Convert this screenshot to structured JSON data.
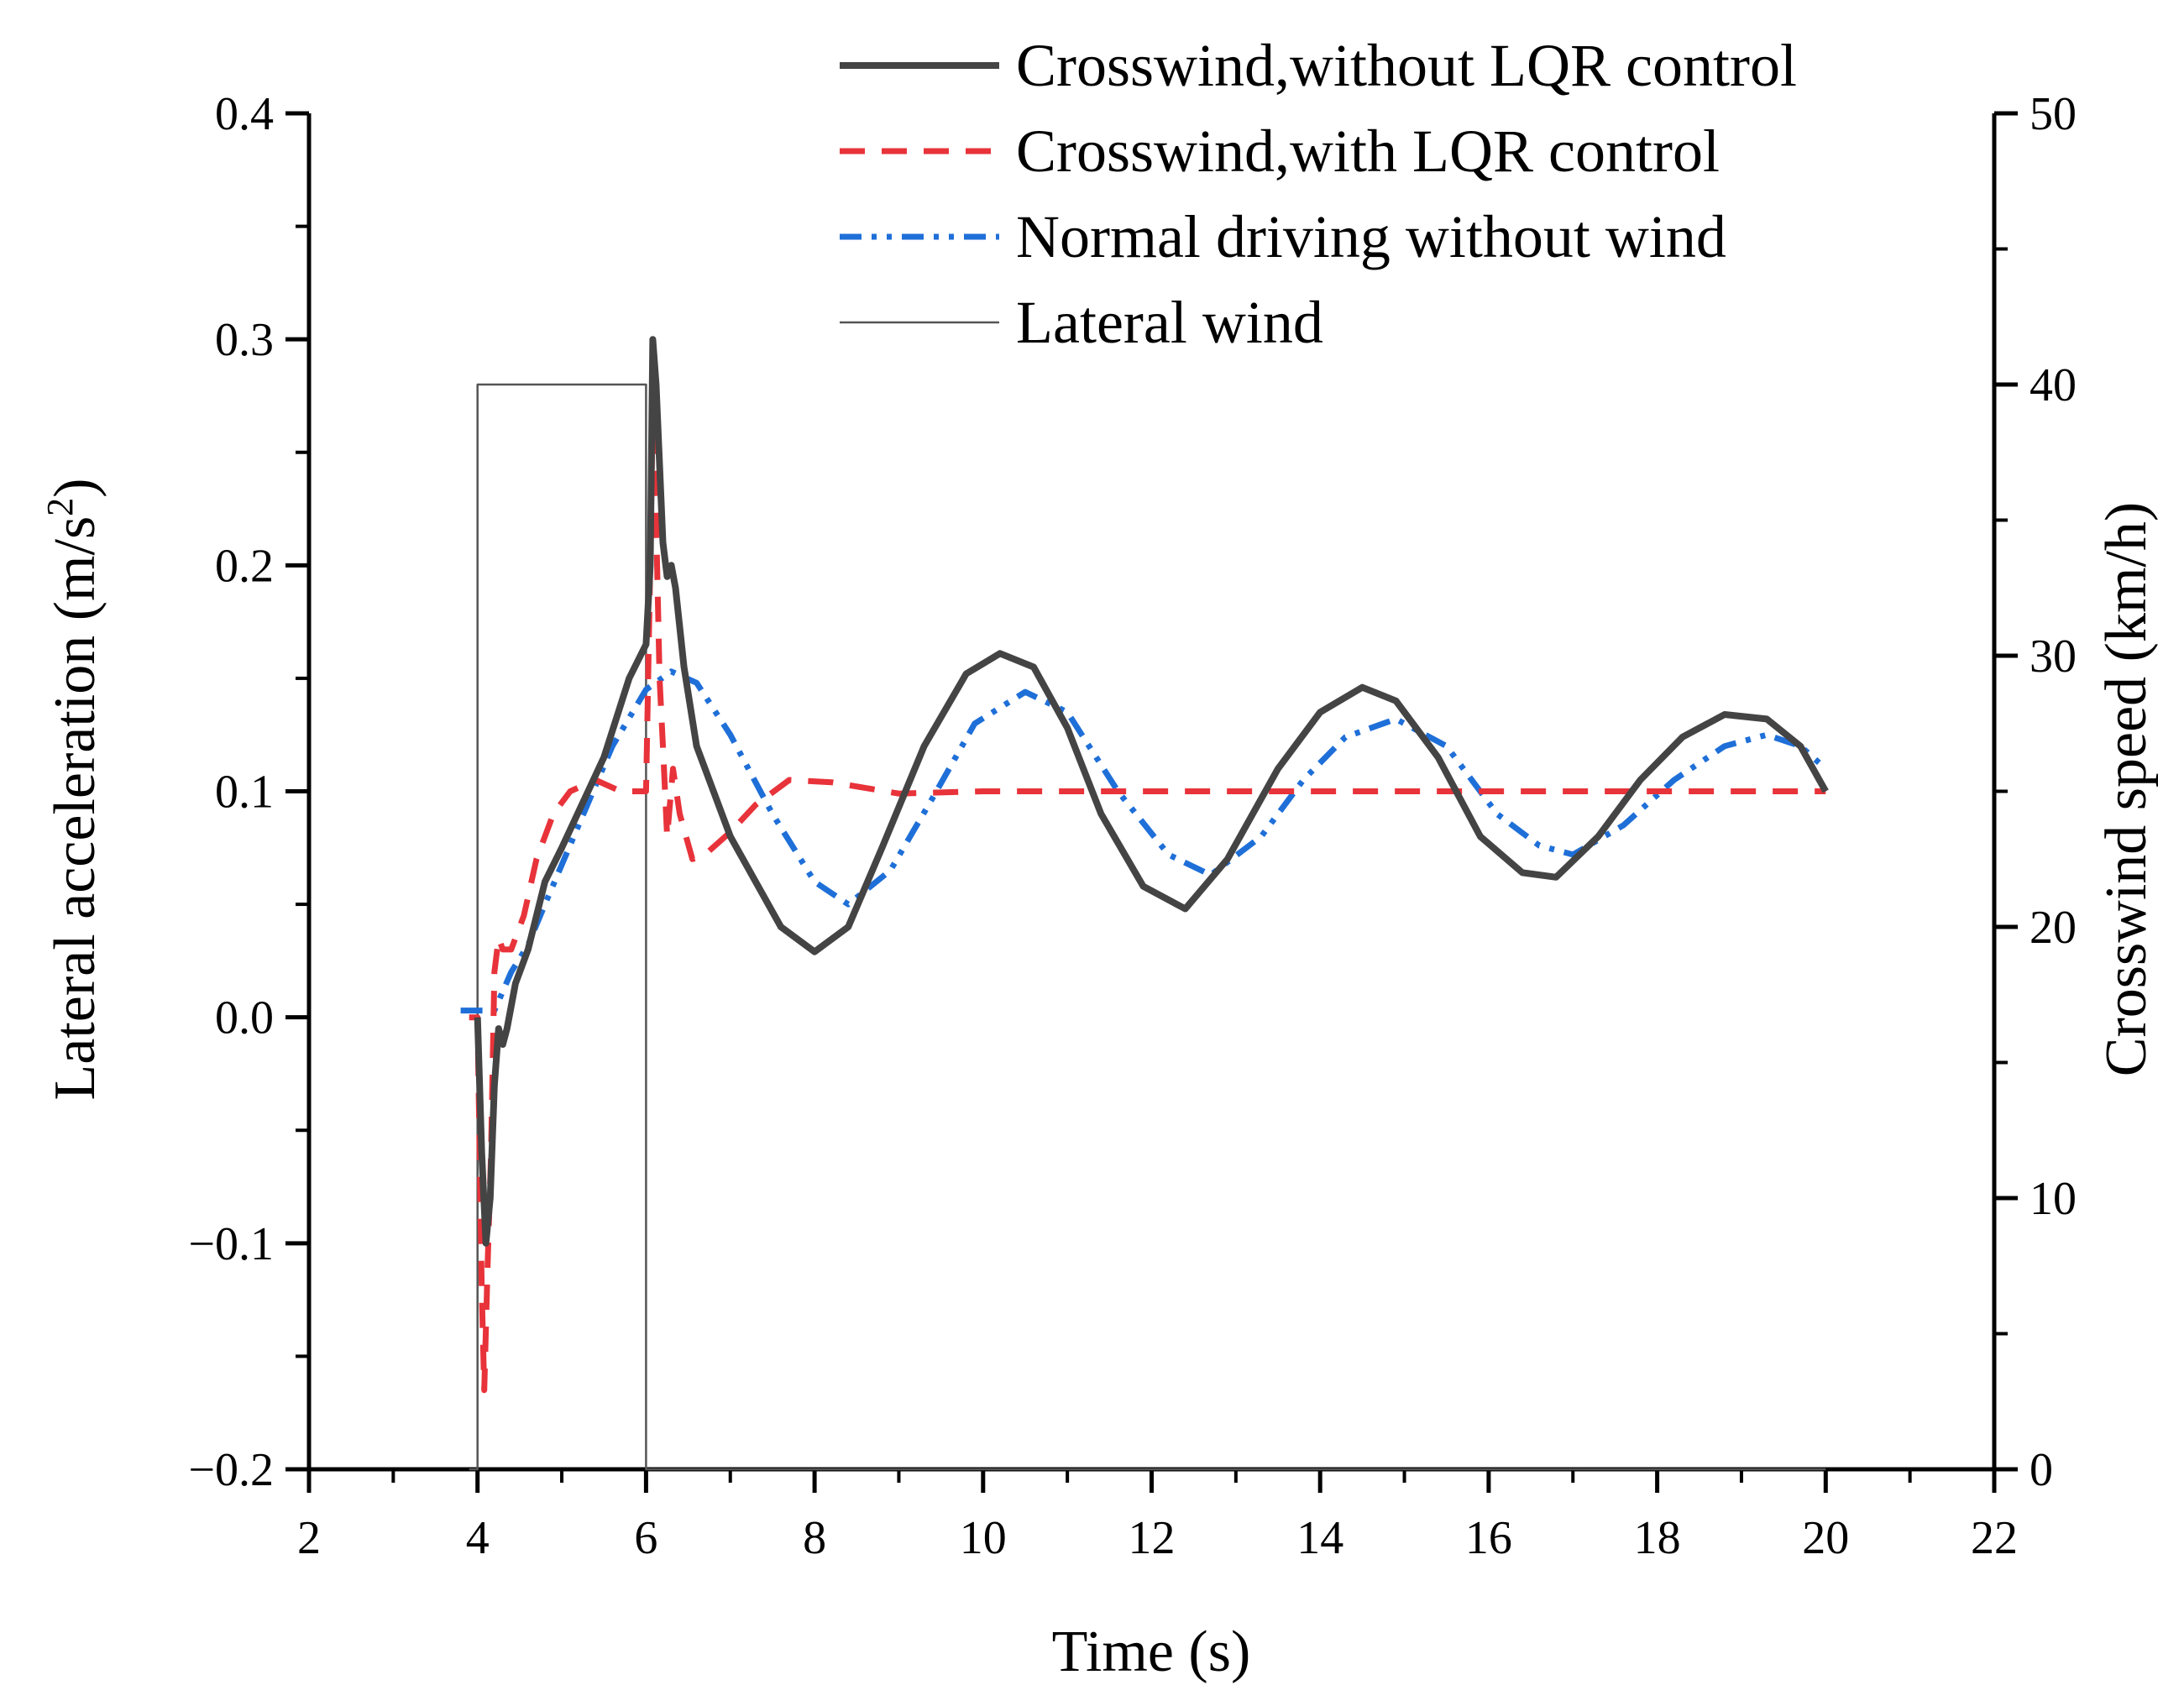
{
  "chart_data": {
    "type": "line",
    "xlabel": "Time (s)",
    "ylabel": "Lateral acceleration (m/s²)",
    "ylabel_main": "Lateral acceleration (m/s",
    "ylabel_sup": "2",
    "ylabel_tail": ")",
    "y2label": "Crosswind speed (km/h)",
    "xlim": [
      2,
      22
    ],
    "ylim": [
      -0.2,
      0.4
    ],
    "y2lim": [
      0,
      50
    ],
    "x_ticks": [
      "2",
      "4",
      "6",
      "8",
      "10",
      "12",
      "14",
      "16",
      "18",
      "20",
      "22"
    ],
    "y_ticks": [
      "−0.2",
      "−0.1",
      "0.0",
      "0.1",
      "0.2",
      "0.3",
      "0.4"
    ],
    "y2_ticks": [
      "0",
      "10",
      "20",
      "30",
      "40",
      "50"
    ],
    "legend_position": "top-right",
    "series": [
      {
        "name": "Crosswind,without LQR control",
        "axis": "left",
        "color": "#444444",
        "style": "solid",
        "points": [
          [
            4.0,
            0.0
          ],
          [
            4.05,
            -0.06
          ],
          [
            4.1,
            -0.1
          ],
          [
            4.15,
            -0.08
          ],
          [
            4.2,
            -0.03
          ],
          [
            4.25,
            -0.005
          ],
          [
            4.3,
            -0.012
          ],
          [
            4.35,
            -0.005
          ],
          [
            4.45,
            0.015
          ],
          [
            4.6,
            0.03
          ],
          [
            4.8,
            0.06
          ],
          [
            5.0,
            0.075
          ],
          [
            5.5,
            0.115
          ],
          [
            5.8,
            0.15
          ],
          [
            6.0,
            0.165
          ],
          [
            6.05,
            0.2
          ],
          [
            6.08,
            0.3
          ],
          [
            6.12,
            0.28
          ],
          [
            6.2,
            0.21
          ],
          [
            6.25,
            0.195
          ],
          [
            6.3,
            0.2
          ],
          [
            6.35,
            0.19
          ],
          [
            6.45,
            0.155
          ],
          [
            6.6,
            0.12
          ],
          [
            6.8,
            0.1
          ],
          [
            7.0,
            0.08
          ],
          [
            7.3,
            0.06
          ],
          [
            7.6,
            0.04
          ],
          [
            8.0,
            0.029
          ],
          [
            8.4,
            0.04
          ],
          [
            8.8,
            0.075
          ],
          [
            9.3,
            0.12
          ],
          [
            9.8,
            0.152
          ],
          [
            10.2,
            0.161
          ],
          [
            10.6,
            0.155
          ],
          [
            11.0,
            0.128
          ],
          [
            11.4,
            0.09
          ],
          [
            11.9,
            0.058
          ],
          [
            12.4,
            0.048
          ],
          [
            12.9,
            0.07
          ],
          [
            13.5,
            0.11
          ],
          [
            14.0,
            0.135
          ],
          [
            14.5,
            0.146
          ],
          [
            14.9,
            0.14
          ],
          [
            15.4,
            0.115
          ],
          [
            15.9,
            0.08
          ],
          [
            16.4,
            0.064
          ],
          [
            16.8,
            0.062
          ],
          [
            17.3,
            0.08
          ],
          [
            17.8,
            0.105
          ],
          [
            18.3,
            0.124
          ],
          [
            18.8,
            0.134
          ],
          [
            19.3,
            0.132
          ],
          [
            19.7,
            0.12
          ],
          [
            20.0,
            0.1
          ]
        ]
      },
      {
        "name": "Crosswind,with LQR control",
        "axis": "left",
        "color": "#e8333a",
        "style": "dash",
        "points": [
          [
            3.9,
            0.0
          ],
          [
            4.0,
            0.0
          ],
          [
            4.05,
            -0.12
          ],
          [
            4.08,
            -0.165
          ],
          [
            4.12,
            -0.11
          ],
          [
            4.16,
            -0.06
          ],
          [
            4.2,
            0.02
          ],
          [
            4.25,
            0.035
          ],
          [
            4.3,
            0.03
          ],
          [
            4.4,
            0.03
          ],
          [
            4.55,
            0.045
          ],
          [
            4.7,
            0.07
          ],
          [
            4.9,
            0.09
          ],
          [
            5.1,
            0.1
          ],
          [
            5.4,
            0.105
          ],
          [
            5.7,
            0.1
          ],
          [
            5.9,
            0.1
          ],
          [
            6.0,
            0.1
          ],
          [
            6.05,
            0.2
          ],
          [
            6.08,
            0.27
          ],
          [
            6.12,
            0.22
          ],
          [
            6.16,
            0.15
          ],
          [
            6.2,
            0.12
          ],
          [
            6.25,
            0.08
          ],
          [
            6.32,
            0.11
          ],
          [
            6.4,
            0.09
          ],
          [
            6.55,
            0.07
          ],
          [
            6.7,
            0.072
          ],
          [
            7.0,
            0.082
          ],
          [
            7.3,
            0.094
          ],
          [
            7.7,
            0.105
          ],
          [
            8.2,
            0.104
          ],
          [
            9.0,
            0.099
          ],
          [
            10.0,
            0.1
          ],
          [
            20.0,
            0.1
          ]
        ]
      },
      {
        "name": "Normal driving without wind",
        "axis": "left",
        "color": "#1f6fd8",
        "style": "dash-dot-dot",
        "points": [
          [
            3.8,
            0.003
          ],
          [
            4.0,
            0.003
          ],
          [
            4.2,
            0.003
          ],
          [
            4.4,
            0.02
          ],
          [
            4.6,
            0.032
          ],
          [
            4.8,
            0.05
          ],
          [
            5.2,
            0.085
          ],
          [
            5.6,
            0.12
          ],
          [
            6.0,
            0.145
          ],
          [
            6.3,
            0.153
          ],
          [
            6.6,
            0.148
          ],
          [
            7.0,
            0.125
          ],
          [
            7.5,
            0.09
          ],
          [
            8.0,
            0.06
          ],
          [
            8.4,
            0.05
          ],
          [
            8.9,
            0.065
          ],
          [
            9.4,
            0.097
          ],
          [
            9.9,
            0.13
          ],
          [
            10.5,
            0.144
          ],
          [
            11.0,
            0.135
          ],
          [
            11.6,
            0.1
          ],
          [
            12.2,
            0.072
          ],
          [
            12.7,
            0.063
          ],
          [
            13.3,
            0.08
          ],
          [
            13.8,
            0.105
          ],
          [
            14.3,
            0.124
          ],
          [
            14.9,
            0.132
          ],
          [
            15.5,
            0.12
          ],
          [
            16.1,
            0.09
          ],
          [
            16.6,
            0.076
          ],
          [
            17.0,
            0.072
          ],
          [
            17.6,
            0.085
          ],
          [
            18.2,
            0.105
          ],
          [
            18.8,
            0.12
          ],
          [
            19.3,
            0.125
          ],
          [
            19.7,
            0.12
          ],
          [
            20.0,
            0.11
          ]
        ]
      },
      {
        "name": "Lateral wind",
        "axis": "right",
        "color": "#555555",
        "style": "thin",
        "points": [
          [
            3.9,
            0
          ],
          [
            4.0,
            0
          ],
          [
            4.0,
            40
          ],
          [
            6.0,
            40
          ],
          [
            6.0,
            0
          ],
          [
            20.0,
            0
          ]
        ]
      }
    ]
  }
}
